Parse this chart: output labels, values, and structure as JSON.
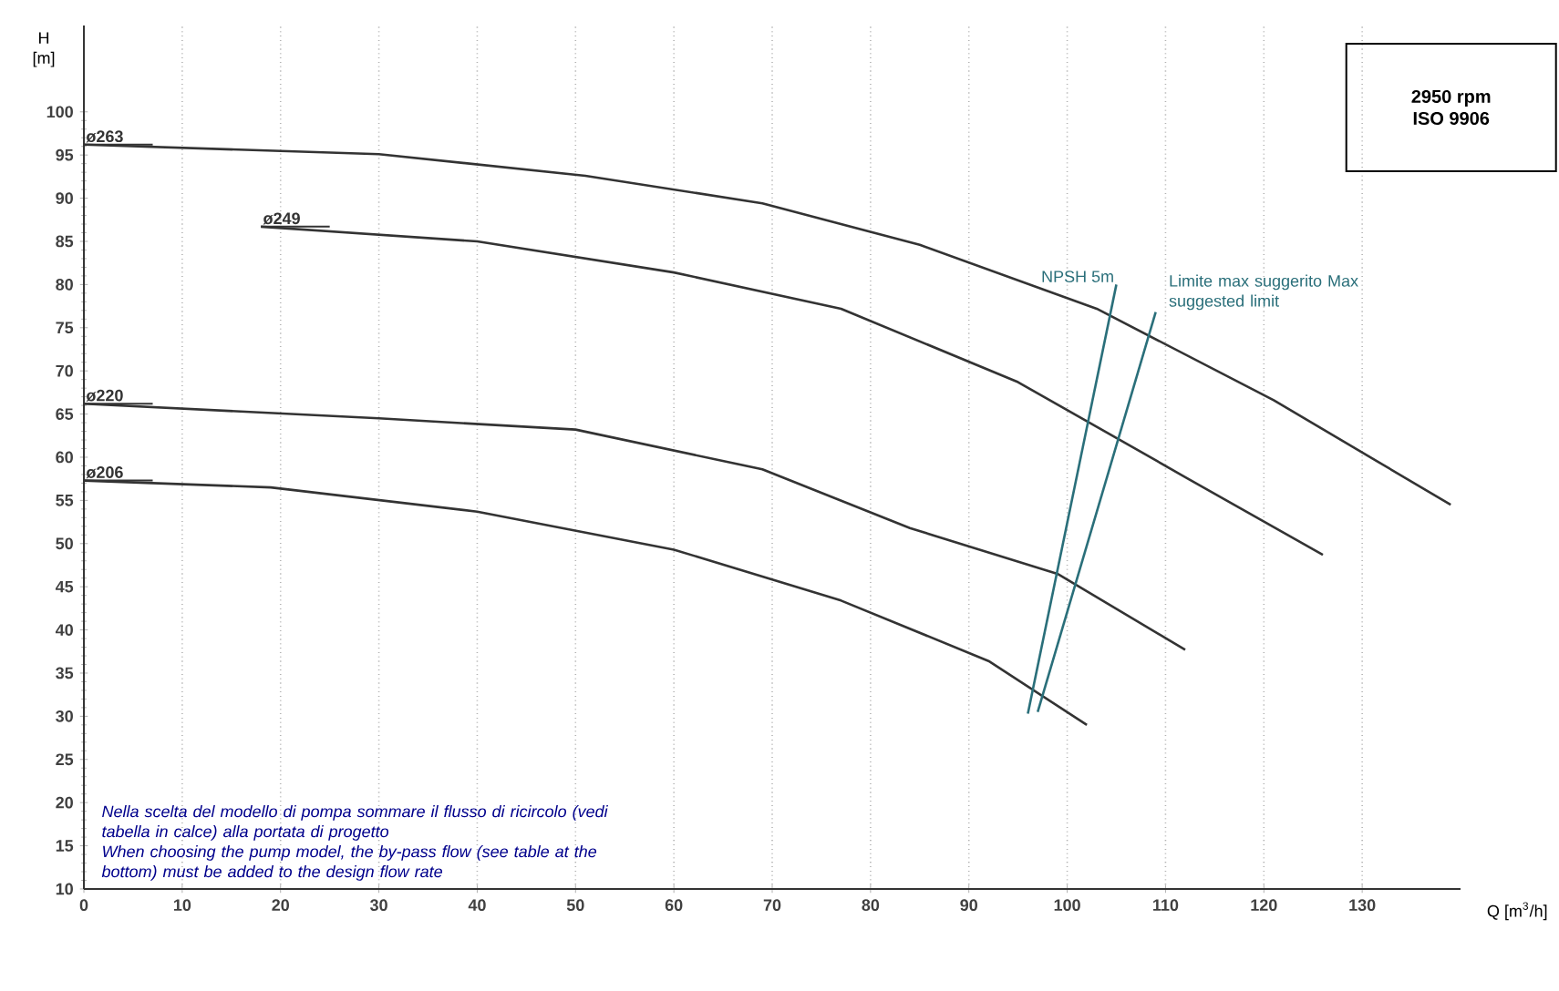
{
  "chart_data": {
    "type": "line",
    "xlabel": "Q [m$^{3}$/h]",
    "ylabel": "H [m]",
    "xlim": [
      0,
      140
    ],
    "xticks": [
      0,
      10,
      20,
      30,
      40,
      50,
      60,
      70,
      80,
      90,
      100,
      110,
      120,
      130
    ],
    "ylim": [
      10,
      110
    ],
    "yticks": [
      10,
      15,
      20,
      25,
      30,
      35,
      40,
      45,
      50,
      55,
      60,
      65,
      70,
      75,
      80,
      85,
      90,
      95,
      100
    ],
    "grid": "x",
    "series": [
      {
        "name": "ø263",
        "color": "#333333",
        "x": [
          0,
          30,
          51,
          69,
          85,
          103,
          121,
          139
        ],
        "values": [
          96.2,
          95.1,
          92.6,
          89.4,
          84.6,
          77.2,
          66.6,
          54.5
        ]
      },
      {
        "name": "ø249",
        "color": "#333333",
        "x": [
          18,
          40,
          60,
          77,
          95,
          112,
          126
        ],
        "values": [
          86.7,
          85,
          81.4,
          77.2,
          68.7,
          57.7,
          48.7
        ]
      },
      {
        "name": "ø220",
        "color": "#333333",
        "x": [
          0,
          30,
          50,
          69,
          84,
          99,
          112
        ],
        "values": [
          66.2,
          64.5,
          63.2,
          58.6,
          51.8,
          46.5,
          37.7
        ]
      },
      {
        "name": "ø206",
        "color": "#333333",
        "x": [
          0,
          19,
          40,
          60,
          77,
          92,
          102
        ],
        "values": [
          57.3,
          56.5,
          53.7,
          49.3,
          43.4,
          36.4,
          29
        ]
      },
      {
        "name": "NPSH 5m",
        "color": "#2a6f7a",
        "x": [
          96,
          105
        ],
        "values": [
          30.3,
          80
        ]
      },
      {
        "name": "Limite max suggerito Max suggested limit",
        "color": "#2a6f7a",
        "x": [
          97,
          109
        ],
        "values": [
          30.5,
          76.8
        ]
      }
    ],
    "annotations": [
      "Nella scelta del modello di pompa sommare il flusso di ricircolo (vedi tabella in calce) alla portata di progetto",
      "When choosing the pump model, the by-pass flow (see table at the bottom) must be added to the design flow rate",
      "2950 rpm",
      "ISO 9906"
    ]
  }
}
